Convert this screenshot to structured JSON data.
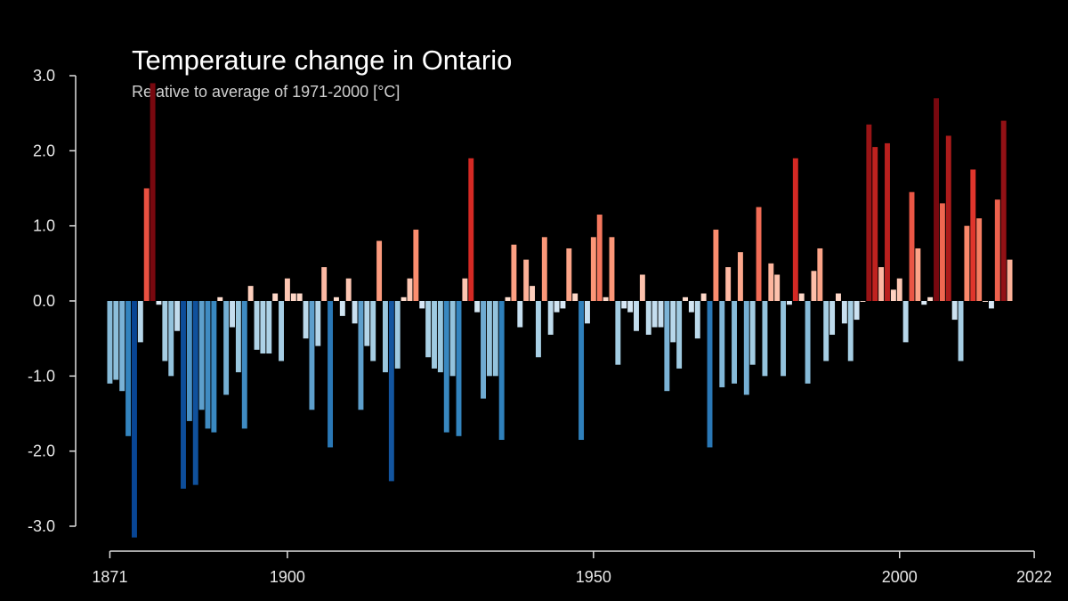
{
  "chart_data": {
    "type": "bar",
    "title": "Temperature change in Ontario",
    "subtitle": "Relative to average of 1971-2000  [°C]",
    "xlabel": "",
    "ylabel": "",
    "x_start": 1871,
    "x_end": 2022,
    "ylim": [
      -3.0,
      3.0
    ],
    "y_ticks": [
      "3.0",
      "2.0",
      "1.0",
      "0.0",
      "-1.0",
      "-2.0",
      "-3.0"
    ],
    "y_tick_values": [
      3,
      2,
      1,
      0,
      -1,
      -2,
      -3
    ],
    "x_ticks": [
      "1871",
      "1900",
      "1950",
      "2000",
      "2022"
    ],
    "x_tick_values": [
      1871,
      1900,
      1950,
      2000,
      2022
    ],
    "values": [
      -1.1,
      -1.05,
      -1.2,
      -1.8,
      -3.15,
      -0.55,
      1.5,
      2.9,
      -0.05,
      -0.8,
      -1.0,
      -0.4,
      -2.5,
      -1.6,
      -2.45,
      -1.45,
      -1.7,
      -1.75,
      0.05,
      -1.25,
      -0.35,
      -0.95,
      -1.7,
      0.2,
      -0.65,
      -0.7,
      -0.7,
      0.1,
      -0.8,
      0.3,
      0.1,
      0.1,
      -0.5,
      -1.45,
      -0.6,
      0.45,
      -1.95,
      0.05,
      -0.2,
      0.3,
      -0.3,
      -1.45,
      -0.6,
      -0.8,
      0.8,
      -0.95,
      -2.4,
      -0.9,
      0.05,
      0.3,
      0.95,
      -0.1,
      -0.75,
      -0.9,
      -0.95,
      -1.75,
      -1.0,
      -1.8,
      0.3,
      1.9,
      -0.15,
      -1.3,
      -1.0,
      -1.0,
      -1.85,
      0.05,
      0.75,
      -0.35,
      0.55,
      0.2,
      -0.75,
      0.85,
      -0.45,
      -0.15,
      -0.1,
      0.7,
      0.1,
      -1.85,
      -0.3,
      0.85,
      1.15,
      0.05,
      0.85,
      -0.85,
      -0.1,
      -0.15,
      -0.4,
      0.35,
      -0.45,
      -0.35,
      -0.35,
      -1.2,
      -0.55,
      -0.9,
      0.05,
      -0.15,
      -0.5,
      0.1,
      -1.95,
      0.95,
      -1.15,
      0.45,
      -1.1,
      0.65,
      -1.25,
      -0.85,
      1.25,
      -1.0,
      0.5,
      0.35,
      -1.0,
      -0.05,
      1.9,
      0.1,
      -1.1,
      0.4,
      0.7,
      -0.8,
      -0.45,
      0.1,
      -0.3,
      -0.8,
      -0.25,
      0.0,
      2.35,
      2.05,
      0.45,
      2.1,
      0.15,
      0.3,
      -0.55,
      1.45,
      0.7,
      -0.05,
      0.05,
      2.7,
      1.3,
      2.2,
      -0.25,
      -0.8,
      1.0,
      1.75,
      1.1,
      0.0,
      -0.1,
      1.35,
      2.4,
      0.55
    ]
  }
}
